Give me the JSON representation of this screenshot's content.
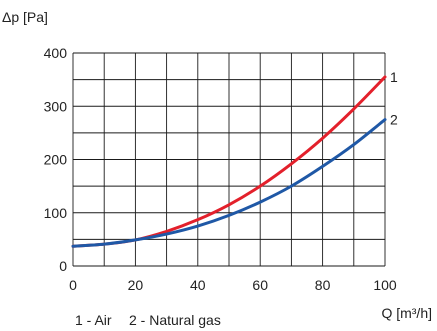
{
  "chart_data": {
    "type": "line",
    "title": "",
    "ylabel": "Δp [Pa]",
    "xlabel": "Q [m³/h]",
    "xlim": [
      0,
      100
    ],
    "ylim": [
      0,
      400
    ],
    "x_ticks": [
      0,
      20,
      40,
      60,
      80,
      100
    ],
    "y_ticks": [
      0,
      100,
      200,
      300,
      400
    ],
    "x_tick_labels": [
      "0",
      "20",
      "40",
      "60",
      "80",
      "100"
    ],
    "y_tick_labels": [
      "0",
      "100",
      "200",
      "300",
      "400"
    ],
    "grid": true,
    "x_grid_step": 10,
    "y_grid_step": 50,
    "series": [
      {
        "label": "1",
        "color": "#e3202b",
        "x": [
          0,
          10,
          20,
          30,
          40,
          50,
          60,
          70,
          80,
          90,
          100
        ],
        "values": [
          37,
          41,
          49,
          65,
          87,
          115,
          150,
          192,
          240,
          295,
          355
        ]
      },
      {
        "label": "2",
        "color": "#1f58a6",
        "x": [
          0,
          10,
          20,
          30,
          40,
          50,
          60,
          70,
          80,
          90,
          100
        ],
        "values": [
          37,
          41,
          49,
          60,
          75,
          95,
          120,
          150,
          187,
          228,
          275
        ]
      }
    ],
    "legend_text": {
      "item1": "1 - Air",
      "item2": "2 - Natural gas"
    }
  }
}
